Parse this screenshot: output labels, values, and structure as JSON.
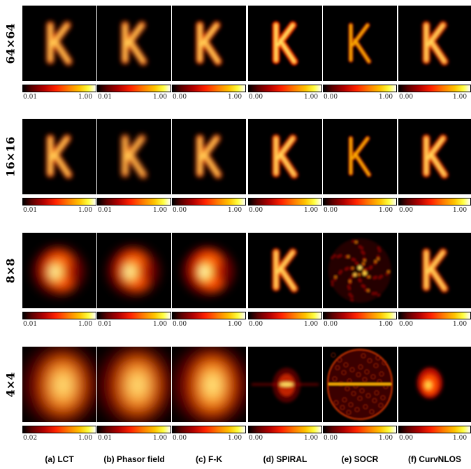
{
  "rows": [
    {
      "label": "64×64",
      "ticks": [
        [
          "0.01",
          "1.00"
        ],
        [
          "0.01",
          "1.00"
        ],
        [
          "0.00",
          "1.00"
        ],
        [
          "0.00",
          "1.00"
        ],
        [
          "0.00",
          "1.00"
        ],
        [
          "0.00",
          "1.00"
        ]
      ]
    },
    {
      "label": "16×16",
      "ticks": [
        [
          "0.01",
          "1.00"
        ],
        [
          "0.01",
          "1.00"
        ],
        [
          "0.00",
          "1.00"
        ],
        [
          "0.00",
          "1.00"
        ],
        [
          "0.00",
          "1.00"
        ],
        [
          "0.00",
          "1.00"
        ]
      ]
    },
    {
      "label": "8×8",
      "ticks": [
        [
          "0.01",
          "1.00"
        ],
        [
          "0.01",
          "1.00"
        ],
        [
          "0.00",
          "1.00"
        ],
        [
          "0.00",
          "1.00"
        ],
        [
          "0.00",
          "1.00"
        ],
        [
          "0.00",
          "1.00"
        ]
      ]
    },
    {
      "label": "4×4",
      "ticks": [
        [
          "0.02",
          "1.00"
        ],
        [
          "0.01",
          "1.00"
        ],
        [
          "0.00",
          "1.00"
        ],
        [
          "0.00",
          "1.00"
        ],
        [
          "0.00",
          "1.00"
        ],
        [
          "0.00",
          "1.00"
        ]
      ]
    }
  ],
  "captions": [
    "(a) LCT",
    "(b) Phasor field",
    "(c) F-K",
    "(d) SPIRAL",
    "(e) SOCR",
    "(f) CurvNLOS"
  ],
  "colors": {
    "background": "#000000",
    "colormap": "hot"
  }
}
